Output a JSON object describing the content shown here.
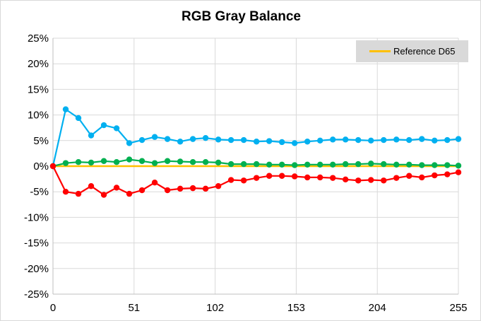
{
  "chart_data": {
    "type": "line",
    "title": "RGB Gray Balance",
    "xlabel": "",
    "ylabel": "",
    "xlim": [
      0,
      255
    ],
    "ylim": [
      -25,
      25
    ],
    "x_ticks": [
      0,
      51,
      102,
      153,
      204,
      255
    ],
    "y_ticks": [
      25,
      20,
      15,
      10,
      5,
      0,
      -5,
      -10,
      -15,
      -20,
      -25
    ],
    "y_tick_labels": [
      "25%",
      "20%",
      "15%",
      "10%",
      "5%",
      "0%",
      "-5%",
      "-10%",
      "-15%",
      "-20%",
      "-25%"
    ],
    "grid": true,
    "legend_position": "top-right",
    "x": [
      0,
      8,
      16,
      24,
      32,
      40,
      48,
      56,
      64,
      72,
      80,
      88,
      96,
      104,
      112,
      120,
      128,
      136,
      144,
      152,
      160,
      168,
      176,
      184,
      192,
      200,
      208,
      216,
      224,
      232,
      240,
      248,
      255
    ],
    "series": [
      {
        "name": "Reference D65",
        "color": "#ffc000",
        "markers": false,
        "values": [
          0,
          0,
          0,
          0,
          0,
          0,
          0,
          0,
          0,
          0,
          0,
          0,
          0,
          0,
          0,
          0,
          0,
          0,
          0,
          0,
          0,
          0,
          0,
          0,
          0,
          0,
          0,
          0,
          0,
          0,
          0,
          0,
          0
        ]
      },
      {
        "color": "#00b0f0",
        "markers": true,
        "values": [
          0,
          11.1,
          9.4,
          6.0,
          8.0,
          7.4,
          4.5,
          5.1,
          5.7,
          5.3,
          4.8,
          5.3,
          5.5,
          5.2,
          5.1,
          5.1,
          4.8,
          4.9,
          4.7,
          4.5,
          4.8,
          5.0,
          5.2,
          5.2,
          5.1,
          5.0,
          5.1,
          5.2,
          5.1,
          5.3,
          5.0,
          5.1,
          5.3
        ]
      },
      {
        "color": "#00b050",
        "markers": true,
        "values": [
          0,
          0.6,
          0.8,
          0.7,
          1.0,
          0.8,
          1.3,
          1.0,
          0.6,
          1.0,
          0.9,
          0.8,
          0.8,
          0.7,
          0.4,
          0.4,
          0.4,
          0.3,
          0.3,
          0.2,
          0.3,
          0.3,
          0.3,
          0.4,
          0.4,
          0.5,
          0.4,
          0.3,
          0.3,
          0.2,
          0.2,
          0.2,
          0.1
        ]
      },
      {
        "color": "#ff0000",
        "markers": true,
        "values": [
          0,
          -5.0,
          -5.4,
          -3.9,
          -5.6,
          -4.2,
          -5.4,
          -4.7,
          -3.2,
          -4.7,
          -4.4,
          -4.3,
          -4.4,
          -3.9,
          -2.7,
          -2.8,
          -2.3,
          -1.9,
          -1.9,
          -2.0,
          -2.2,
          -2.2,
          -2.3,
          -2.6,
          -2.8,
          -2.7,
          -2.8,
          -2.3,
          -1.9,
          -2.2,
          -1.8,
          -1.6,
          -1.2
        ]
      }
    ]
  }
}
